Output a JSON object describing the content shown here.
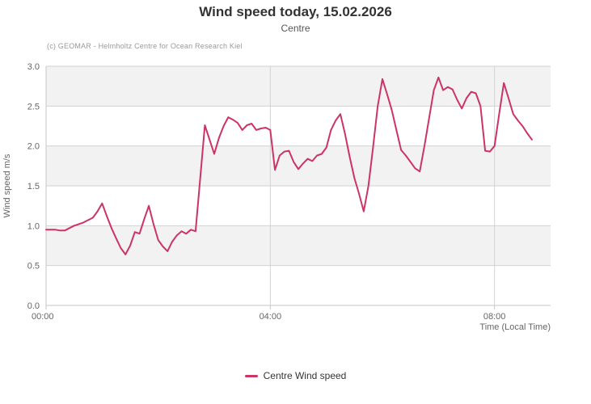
{
  "title": "Wind speed today, 15.02.2026",
  "subtitle": "Centre",
  "credit": "(c) GEOMAR - Helmholtz Centre for Ocean Research Kiel",
  "legend": {
    "label": "Centre Wind speed"
  },
  "colors": {
    "series": "#cc3366",
    "band": "#f2f2f2",
    "grid": "#d2d2d2",
    "axis": "#c6c6c6",
    "tick_text": "#666666",
    "title_text": "#333333",
    "subtitle_text": "#555555",
    "credit_text": "#9a9a9a",
    "legend_text": "#333333"
  },
  "chart_data": {
    "type": "line",
    "title": "Wind speed today, 15.02.2026",
    "subtitle": "Centre",
    "xlabel": "Time (Local Time)",
    "ylabel": "Wind speed  m/s",
    "ylim": [
      0.0,
      3.0
    ],
    "y_tick_step": 0.5,
    "y_tick_labels": [
      "3.0",
      "2.5",
      "2.0",
      "1.5",
      "1.0",
      "0.5",
      "0.0"
    ],
    "x_axis_minutes": [
      0,
      540
    ],
    "x_ticks": [
      {
        "label": "00:00",
        "minute": 0
      },
      {
        "label": "04:00",
        "minute": 240
      },
      {
        "label": "08:00",
        "minute": 480
      }
    ],
    "grid": "horizontal every 0.5 with alternating shaded bands; vertical at 4h",
    "legend_position": "bottom-center",
    "series": [
      {
        "name": "Centre Wind speed",
        "color": "#cc3366",
        "start_time": "00:00",
        "step_minutes": 5,
        "end_time": "08:40",
        "unit": "m/s",
        "values": [
          0.95,
          0.95,
          0.95,
          0.94,
          0.94,
          0.97,
          1.0,
          1.02,
          1.04,
          1.07,
          1.1,
          1.18,
          1.28,
          1.12,
          0.97,
          0.84,
          0.72,
          0.64,
          0.75,
          0.92,
          0.9,
          1.08,
          1.25,
          1.02,
          0.82,
          0.74,
          0.68,
          0.8,
          0.88,
          0.93,
          0.9,
          0.95,
          0.93,
          1.6,
          2.26,
          2.08,
          1.9,
          2.1,
          2.25,
          2.36,
          2.33,
          2.29,
          2.2,
          2.26,
          2.28,
          2.2,
          2.22,
          2.23,
          2.2,
          1.7,
          1.88,
          1.93,
          1.94,
          1.8,
          1.71,
          1.78,
          1.84,
          1.81,
          1.88,
          1.9,
          1.98,
          2.2,
          2.32,
          2.4,
          2.15,
          1.86,
          1.6,
          1.4,
          1.18,
          1.5,
          1.98,
          2.5,
          2.84,
          2.65,
          2.45,
          2.2,
          1.95,
          1.88,
          1.8,
          1.72,
          1.68,
          2.0,
          2.35,
          2.7,
          2.86,
          2.7,
          2.74,
          2.71,
          2.58,
          2.47,
          2.6,
          2.68,
          2.66,
          2.5,
          1.94,
          1.93,
          2.0,
          2.4,
          2.79,
          2.6,
          2.4,
          2.32,
          2.25,
          2.16,
          2.08
        ]
      }
    ]
  }
}
